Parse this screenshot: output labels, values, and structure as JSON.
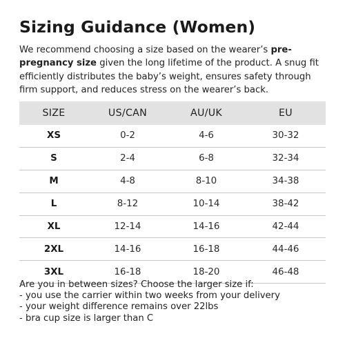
{
  "title": "Sizing Guidance (Women)",
  "intro": {
    "part1": "We recommend choosing a size based on the wearer’s ",
    "bold": "pre-pregnancy size",
    "part2": " given the long lifetime of the product. A snug fit efficiently distributes the baby’s weight, ensures safety through firm support, and reduces stress on the wearer’s back."
  },
  "table": {
    "headers": [
      "SIZE",
      "US/CAN",
      "AU/UK",
      "EU"
    ],
    "rows": [
      [
        "XS",
        "0-2",
        "4-6",
        "30-32"
      ],
      [
        "S",
        "2-4",
        "6-8",
        "32-34"
      ],
      [
        "M",
        "4-8",
        "8-10",
        "34-38"
      ],
      [
        "L",
        "8-12",
        "10-14",
        "38-42"
      ],
      [
        "XL",
        "12-14",
        "14-16",
        "42-44"
      ],
      [
        "2XL",
        "14-16",
        "16-18",
        "44-46"
      ],
      [
        "3XL",
        "16-18",
        "18-20",
        "46-48"
      ]
    ]
  },
  "footer": {
    "question": "Are you in between sizes? Choose the larger size if:",
    "items": [
      "- you use the carrier within two weeks from your delivery",
      "- your weight difference remains over 22lbs",
      "- bra cup size is larger than C"
    ]
  }
}
